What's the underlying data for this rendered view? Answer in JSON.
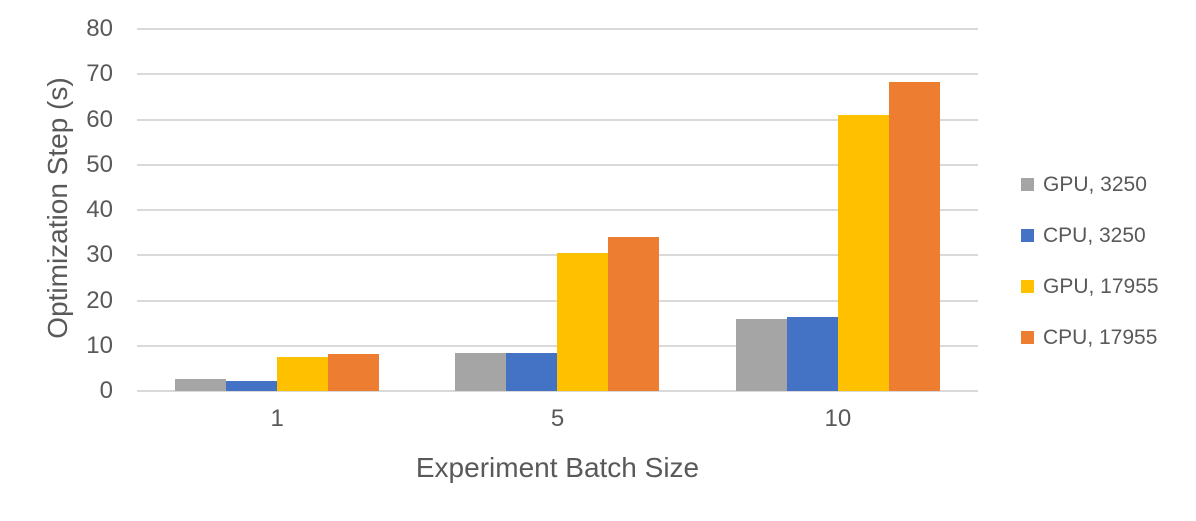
{
  "chart_data": {
    "type": "bar",
    "title": "",
    "xlabel": "Experiment Batch Size",
    "ylabel": "Optimization Step (s)",
    "categories": [
      "1",
      "5",
      "10"
    ],
    "series": [
      {
        "name": "GPU, 3250",
        "color": "#a5a5a5",
        "values": [
          2.6,
          8.5,
          16.0
        ]
      },
      {
        "name": "CPU, 3250",
        "color": "#4472c4",
        "values": [
          2.3,
          8.5,
          16.4
        ]
      },
      {
        "name": "GPU, 17955",
        "color": "#ffc000",
        "values": [
          7.5,
          30.6,
          61.0
        ]
      },
      {
        "name": "CPU, 17955",
        "color": "#ed7d31",
        "values": [
          8.2,
          34.0,
          68.3
        ]
      }
    ],
    "ylim": [
      0,
      80
    ],
    "ytick_step": 10,
    "grid": true,
    "legend_position": "right",
    "gridline_color": "#d9d9d9",
    "text_color": "#595959"
  }
}
